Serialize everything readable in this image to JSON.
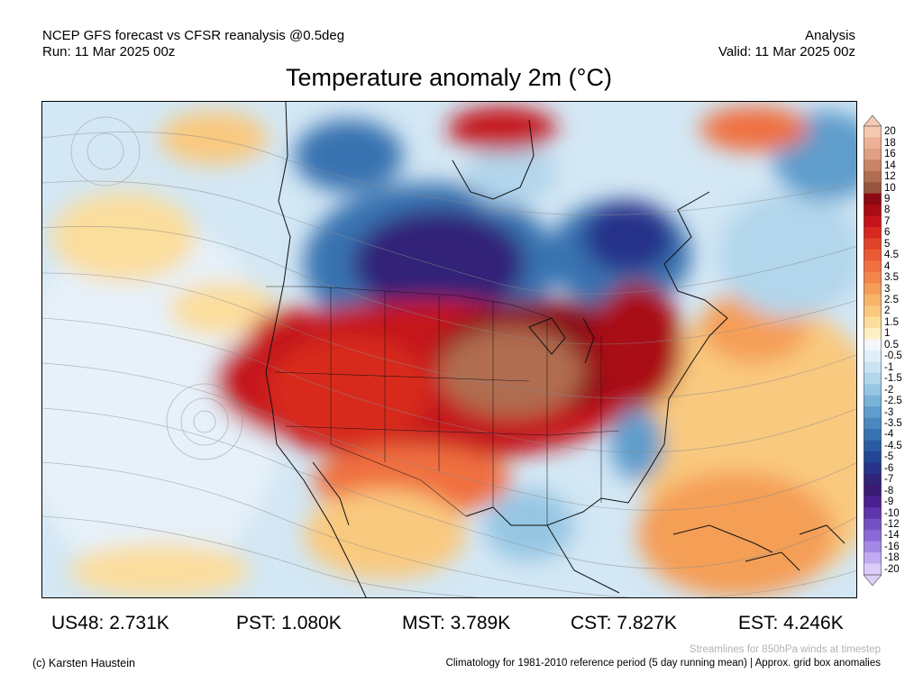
{
  "header": {
    "left_line1": "NCEP GFS forecast vs CFSR reanalysis @0.5deg",
    "left_line2": "Run: 11 Mar 2025 00z",
    "right_line1": "Analysis",
    "right_line2": "Valid: 11 Mar 2025 00z"
  },
  "title": "Temperature anomaly 2m (°C)",
  "colorbar": {
    "labels": [
      "20",
      "18",
      "16",
      "14",
      "12",
      "10",
      "9",
      "8",
      "7",
      "6",
      "5",
      "4.5",
      "4",
      "3.5",
      "3",
      "2.5",
      "2",
      "1.5",
      "1",
      "0.5",
      "-0.5",
      "-1",
      "-1.5",
      "-2",
      "-2.5",
      "-3",
      "-3.5",
      "-4",
      "-4.5",
      "-5",
      "-6",
      "-7",
      "-8",
      "-9",
      "-10",
      "-12",
      "-14",
      "-16",
      "-18",
      "-20"
    ],
    "colors": [
      "#f7c8b0",
      "#eeb196",
      "#e09e83",
      "#c98468",
      "#b06d50",
      "#96553c",
      "#8b0a12",
      "#a90c12",
      "#c5141a",
      "#d8291f",
      "#e1432a",
      "#ea5a35",
      "#f0703f",
      "#f3864a",
      "#f59e57",
      "#f7b468",
      "#f9c97f",
      "#fbdd9c",
      "#fdf0c4",
      "#f4f7fa",
      "#dfeef8",
      "#cbe4f3",
      "#b2d6ec",
      "#96c6e3",
      "#7ab3d8",
      "#5e9dcc",
      "#4988bf",
      "#3872b0",
      "#2a5ca2",
      "#214694",
      "#273389",
      "#312478",
      "#3b1a73",
      "#4b2090",
      "#5e35aa",
      "#7550c5",
      "#8b6ad8",
      "#a488e6",
      "#c1aaf1",
      "#dcccf9"
    ]
  },
  "stats": [
    {
      "label": "US48: 2.731K"
    },
    {
      "label": "PST: 1.080K"
    },
    {
      "label": "MST: 3.789K"
    },
    {
      "label": "CST: 7.827K"
    },
    {
      "label": "EST: 4.246K"
    }
  ],
  "footer": {
    "stream_note": "Streamlines for 850hPa winds at timestep",
    "copyright": "(c) Karsten Haustein",
    "clim_note": "Climatology for 1981-2010 reference period (5 day running mean) | Approx. grid box anomalies"
  }
}
